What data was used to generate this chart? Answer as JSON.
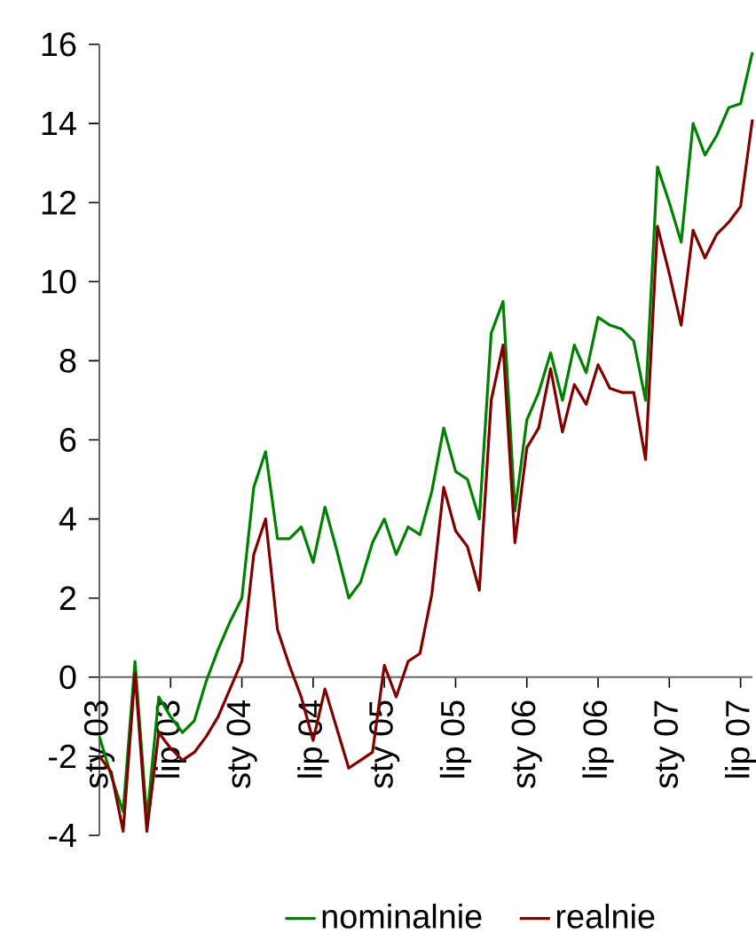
{
  "chart_data": {
    "type": "line",
    "categories": [
      "sty 03",
      null,
      null,
      null,
      null,
      null,
      "lip 03",
      null,
      null,
      null,
      null,
      null,
      "sty 04",
      null,
      null,
      null,
      null,
      null,
      "lip 04",
      null,
      null,
      null,
      null,
      null,
      "sty 05",
      null,
      null,
      null,
      null,
      null,
      "lip 05",
      null,
      null,
      null,
      null,
      null,
      "sty 06",
      null,
      null,
      null,
      null,
      null,
      "lip 06",
      null,
      null,
      null,
      null,
      null,
      "sty 07",
      null,
      null,
      null,
      null,
      null,
      "lip 07",
      null
    ],
    "series": [
      {
        "name": "nominalnie",
        "color": "#008000",
        "values": [
          -1.5,
          -2.5,
          -3.4,
          0.4,
          -3.6,
          -0.5,
          -1.0,
          -1.4,
          -1.1,
          -0.1,
          0.7,
          1.4,
          2.0,
          4.8,
          5.7,
          3.5,
          3.5,
          3.8,
          2.9,
          4.3,
          3.2,
          2.0,
          2.4,
          3.4,
          4.0,
          3.1,
          3.8,
          3.6,
          4.7,
          6.3,
          5.2,
          5.0,
          4.0,
          8.7,
          9.5,
          4.2,
          6.5,
          7.2,
          8.2,
          7.0,
          8.4,
          7.7,
          9.1,
          8.9,
          8.8,
          8.5,
          7.0,
          12.9,
          12.0,
          11.0,
          14.0,
          13.2,
          13.7,
          14.4,
          14.5,
          15.8
        ]
      },
      {
        "name": "realnie",
        "color": "#800000",
        "values": [
          -2.0,
          -2.4,
          -3.9,
          0.1,
          -3.9,
          -1.4,
          -1.8,
          -2.1,
          -1.9,
          -1.5,
          -1.0,
          -0.3,
          0.4,
          3.1,
          4.0,
          1.2,
          0.3,
          -0.5,
          -1.6,
          -0.3,
          -1.3,
          -2.3,
          -2.1,
          -1.9,
          0.3,
          -0.5,
          0.4,
          0.6,
          2.1,
          4.8,
          3.7,
          3.3,
          2.2,
          7.0,
          8.4,
          3.4,
          5.8,
          6.3,
          7.8,
          6.2,
          7.4,
          6.9,
          7.9,
          7.3,
          7.2,
          7.2,
          5.5,
          11.4,
          10.2,
          8.9,
          11.3,
          10.6,
          11.2,
          11.5,
          11.9,
          14.1
        ]
      }
    ],
    "ylim": [
      -4,
      16
    ],
    "yticks": [
      -4,
      -2,
      0,
      2,
      4,
      6,
      8,
      10,
      12,
      14,
      16
    ],
    "grid": false,
    "legend": "bottom"
  }
}
